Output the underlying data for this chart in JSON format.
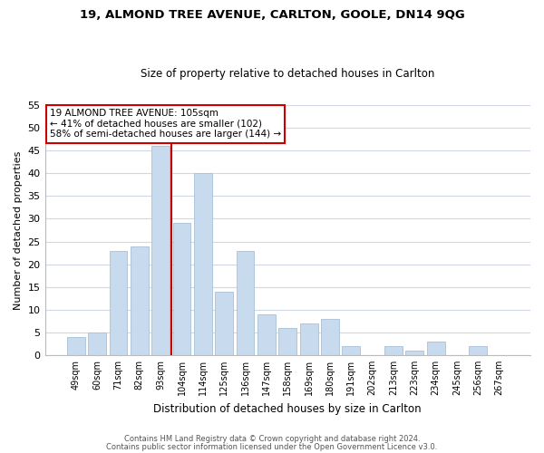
{
  "title": "19, ALMOND TREE AVENUE, CARLTON, GOOLE, DN14 9QG",
  "subtitle": "Size of property relative to detached houses in Carlton",
  "xlabel": "Distribution of detached houses by size in Carlton",
  "ylabel": "Number of detached properties",
  "bar_color": "#c8daed",
  "bar_edge_color": "#a8c0d8",
  "categories": [
    "49sqm",
    "60sqm",
    "71sqm",
    "82sqm",
    "93sqm",
    "104sqm",
    "114sqm",
    "125sqm",
    "136sqm",
    "147sqm",
    "158sqm",
    "169sqm",
    "180sqm",
    "191sqm",
    "202sqm",
    "213sqm",
    "223sqm",
    "234sqm",
    "245sqm",
    "256sqm",
    "267sqm"
  ],
  "values": [
    4,
    5,
    23,
    24,
    46,
    29,
    40,
    14,
    23,
    9,
    6,
    7,
    8,
    2,
    0,
    2,
    1,
    3,
    0,
    2,
    0
  ],
  "ylim": [
    0,
    55
  ],
  "yticks": [
    0,
    5,
    10,
    15,
    20,
    25,
    30,
    35,
    40,
    45,
    50,
    55
  ],
  "vline_color": "#cc0000",
  "vline_index": 5,
  "annotation_line1": "19 ALMOND TREE AVENUE: 105sqm",
  "annotation_line2": "← 41% of detached houses are smaller (102)",
  "annotation_line3": "58% of semi-detached houses are larger (144) →",
  "footer_line1": "Contains HM Land Registry data © Crown copyright and database right 2024.",
  "footer_line2": "Contains public sector information licensed under the Open Government Licence v3.0.",
  "background_color": "#ffffff",
  "grid_color": "#d0d8e8"
}
